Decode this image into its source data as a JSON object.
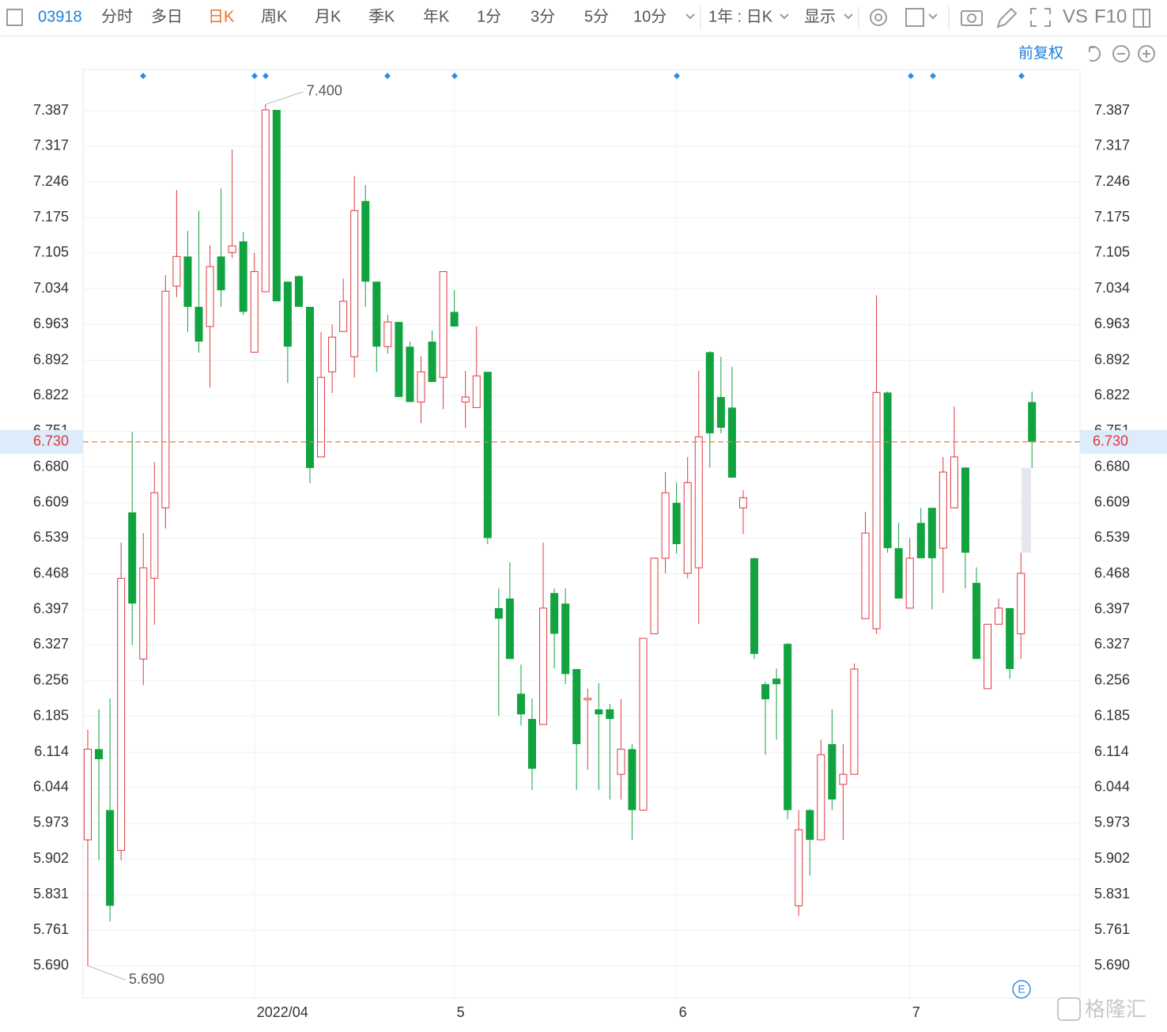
{
  "toolbar": {
    "code": "03918",
    "periods": [
      "分时",
      "多日",
      "日K",
      "周K",
      "月K",
      "季K",
      "年K",
      "1分",
      "3分",
      "5分",
      "10分"
    ],
    "active": "日K",
    "range": "1年 : 日K",
    "display": "显示",
    "vs": "VS",
    "f10": "F10"
  },
  "adjust": "前复权",
  "watermark": "格隆汇",
  "chart_data": {
    "type": "candlestick",
    "categories": [
      null,
      null,
      null,
      null,
      null,
      null,
      null,
      null,
      null,
      null,
      null,
      null,
      null,
      null,
      null,
      "2022/04",
      null,
      null,
      null,
      null,
      null,
      null,
      null,
      null,
      null,
      null,
      null,
      null,
      null,
      null,
      null,
      null,
      null,
      "5",
      null,
      null,
      null,
      null,
      null,
      null,
      null,
      null,
      null,
      null,
      null,
      null,
      null,
      null,
      null,
      null,
      null,
      null,
      null,
      "6",
      null,
      null,
      null,
      null,
      null,
      null,
      null,
      null,
      null,
      null,
      null,
      null,
      null,
      null,
      null,
      null,
      null,
      null,
      null,
      null,
      "7",
      null,
      null,
      null,
      null,
      null,
      null,
      null,
      null,
      null,
      null,
      null
    ],
    "open": [
      5.94,
      6.12,
      5.999,
      5.919,
      6.59,
      6.299,
      6.459,
      6.599,
      7.039,
      7.098,
      6.998,
      6.959,
      7.098,
      7.106,
      7.128,
      6.908,
      7.028,
      7.389,
      7.048,
      7.059,
      6.998,
      6.7,
      6.869,
      6.949,
      6.899,
      7.208,
      7.048,
      6.919,
      6.968,
      6.919,
      6.809,
      6.929,
      6.858,
      6.988,
      6.809,
      6.798,
      6.869,
      6.4,
      6.419,
      6.23,
      6.18,
      6.169,
      6.43,
      6.409,
      6.279,
      6.218,
      6.199,
      6.199,
      6.07,
      6.12,
      5.999,
      6.349,
      6.499,
      6.609,
      6.469,
      6.48,
      6.908,
      6.819,
      6.798,
      6.599,
      6.499,
      6.249,
      6.26,
      6.329,
      5.809,
      5.999,
      5.94,
      6.13,
      6.05,
      6.07,
      6.379,
      6.359,
      6.828,
      6.519,
      6.4,
      6.569,
      6.599,
      6.519,
      6.599,
      6.679,
      6.45,
      6.24,
      6.368,
      6.4,
      6.349,
      6.809
    ],
    "high": [
      6.159,
      6.199,
      6.221,
      6.53,
      6.75,
      6.549,
      6.69,
      7.061,
      7.23,
      7.149,
      7.189,
      7.12,
      7.233,
      7.31,
      7.147,
      7.105,
      7.4,
      7.389,
      7.048,
      7.061,
      6.998,
      6.948,
      6.963,
      7.054,
      7.258,
      7.24,
      7.048,
      6.982,
      6.968,
      6.929,
      6.9,
      6.951,
      7.068,
      7.031,
      6.871,
      6.959,
      6.869,
      6.439,
      6.491,
      6.288,
      6.221,
      6.53,
      6.439,
      6.439,
      6.279,
      6.24,
      6.251,
      6.21,
      6.219,
      6.13,
      6.34,
      6.5,
      6.67,
      6.649,
      6.7,
      6.871,
      6.91,
      6.899,
      6.879,
      6.634,
      6.5,
      6.254,
      6.28,
      6.331,
      5.999,
      6.001,
      6.139,
      6.199,
      6.13,
      6.29,
      6.591,
      7.021,
      6.83,
      6.569,
      6.539,
      6.599,
      6.599,
      6.7,
      6.8,
      6.679,
      6.481,
      6.368,
      6.419,
      6.4,
      6.51,
      6.83
    ],
    "low": [
      5.69,
      5.899,
      5.778,
      5.899,
      6.327,
      6.247,
      6.367,
      6.558,
      7.017,
      6.948,
      6.907,
      6.838,
      6.998,
      7.095,
      6.982,
      6.908,
      7.028,
      7.009,
      6.847,
      6.998,
      6.648,
      6.7,
      6.827,
      6.949,
      6.858,
      6.998,
      6.869,
      6.905,
      6.819,
      6.809,
      6.767,
      6.849,
      6.795,
      6.959,
      6.758,
      6.798,
      6.527,
      6.186,
      6.299,
      6.167,
      6.039,
      6.169,
      6.28,
      6.249,
      6.039,
      6.079,
      6.039,
      6.02,
      6.02,
      5.94,
      5.999,
      6.349,
      6.469,
      6.508,
      6.459,
      6.368,
      6.679,
      6.747,
      6.659,
      6.547,
      6.299,
      6.109,
      6.139,
      5.981,
      5.789,
      5.869,
      5.94,
      5.999,
      5.94,
      6.07,
      6.379,
      6.349,
      6.51,
      6.419,
      6.4,
      6.499,
      6.398,
      6.43,
      6.599,
      6.439,
      6.299,
      6.24,
      6.368,
      6.26,
      6.299,
      6.678
    ],
    "close": [
      6.12,
      6.1,
      5.809,
      6.459,
      6.409,
      6.48,
      6.629,
      7.029,
      7.098,
      6.998,
      6.929,
      7.078,
      7.031,
      7.119,
      6.988,
      7.068,
      7.389,
      7.009,
      6.919,
      6.998,
      6.678,
      6.858,
      6.938,
      7.009,
      7.189,
      7.048,
      6.919,
      6.968,
      6.819,
      6.809,
      6.869,
      6.849,
      7.068,
      6.959,
      6.819,
      6.861,
      6.539,
      6.379,
      6.299,
      6.189,
      6.081,
      6.4,
      6.349,
      6.269,
      6.13,
      6.221,
      6.189,
      6.18,
      6.12,
      5.999,
      6.34,
      6.499,
      6.629,
      6.527,
      6.649,
      6.74,
      6.747,
      6.758,
      6.659,
      6.619,
      6.309,
      6.219,
      6.249,
      5.999,
      5.96,
      5.94,
      6.109,
      6.02,
      6.07,
      6.279,
      6.549,
      6.828,
      6.519,
      6.419,
      6.499,
      6.499,
      6.499,
      6.67,
      6.7,
      6.51,
      6.299,
      6.368,
      6.4,
      6.279,
      6.469,
      6.73
    ],
    "up_color": "#e0393e",
    "down_color": "#11a33f",
    "ylim": [
      5.626,
      7.469
    ],
    "yticks": [
      {
        "value": 5.69,
        "label": "5.690"
      },
      5.761,
      5.831,
      5.902,
      5.973,
      6.044,
      6.114,
      6.185,
      6.256,
      6.327,
      6.397,
      6.468,
      6.539,
      6.609,
      {
        "value": 6.68,
        "label": "6.680"
      },
      6.751,
      6.822,
      6.892,
      6.963,
      7.034,
      7.105,
      7.175,
      7.246,
      7.317,
      7.387
    ],
    "grid": true,
    "annotations": [
      {
        "value": 7.4,
        "label": "7.400"
      },
      {
        "value": 5.69,
        "label": "5.690"
      }
    ],
    "current_price": {
      "value": 6.73,
      "label": "6.730",
      "color": "#e8803a"
    }
  }
}
